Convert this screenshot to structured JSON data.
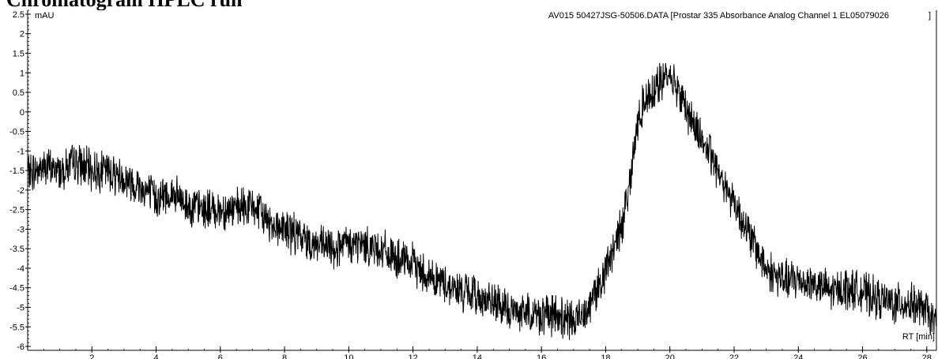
{
  "heading": "Chromatogram HPLC run",
  "chart_data": {
    "type": "line",
    "title": "AV015 50427JSG-50506.DATA [Prostar 335 Absorbance Analog Channel 1 EL05079026",
    "title_bracket_close": "]",
    "xlabel": "RT [min]",
    "ylabel": "mAU",
    "xlim": [
      0,
      28.3
    ],
    "ylim": [
      -6.1,
      2.6
    ],
    "xticks": [
      2,
      4,
      6,
      8,
      10,
      12,
      14,
      16,
      18,
      20,
      22,
      24,
      26,
      28
    ],
    "yticks": [
      2.5,
      2,
      1.5,
      1,
      0.5,
      0,
      -0.5,
      -1,
      -1.5,
      -2,
      -2.5,
      -3,
      -3.5,
      -4,
      -4.5,
      -5,
      -5.5,
      -6
    ],
    "grid": false,
    "series": [
      {
        "color": "#000000",
        "x": [
          0,
          0.5,
          1,
          1.5,
          2,
          2.5,
          3,
          3.5,
          4,
          4.5,
          5,
          5.5,
          6,
          6.5,
          7,
          7.5,
          8,
          8.5,
          9,
          9.5,
          10,
          10.5,
          11,
          11.5,
          12,
          12.5,
          13,
          13.5,
          14,
          14.5,
          15,
          15.5,
          16,
          16.5,
          17,
          17.5,
          18,
          18.5,
          18.8,
          19,
          19.2,
          19.5,
          19.8,
          20,
          20.3,
          20.6,
          21,
          21.5,
          22,
          22.5,
          23,
          23.5,
          24,
          24.5,
          25,
          25.5,
          26,
          26.5,
          27,
          27.5,
          28,
          28.3
        ],
        "values": [
          -1.6,
          -1.4,
          -1.5,
          -1.3,
          -1.5,
          -1.5,
          -1.7,
          -1.9,
          -2.2,
          -2.1,
          -2.4,
          -2.5,
          -2.5,
          -2.5,
          -2.4,
          -2.8,
          -3.0,
          -3.2,
          -3.4,
          -3.5,
          -3.4,
          -3.4,
          -3.5,
          -3.8,
          -3.9,
          -4.2,
          -4.4,
          -4.6,
          -4.7,
          -4.9,
          -5.1,
          -5.1,
          -5.2,
          -5.2,
          -5.4,
          -4.9,
          -4.1,
          -2.9,
          -1.5,
          -0.3,
          0.3,
          0.6,
          0.8,
          1.0,
          0.5,
          -0.1,
          -0.7,
          -1.5,
          -2.3,
          -3.2,
          -4.0,
          -4.3,
          -4.3,
          -4.4,
          -4.6,
          -4.5,
          -4.6,
          -4.8,
          -4.9,
          -4.9,
          -5.1,
          -5.5
        ]
      }
    ]
  }
}
